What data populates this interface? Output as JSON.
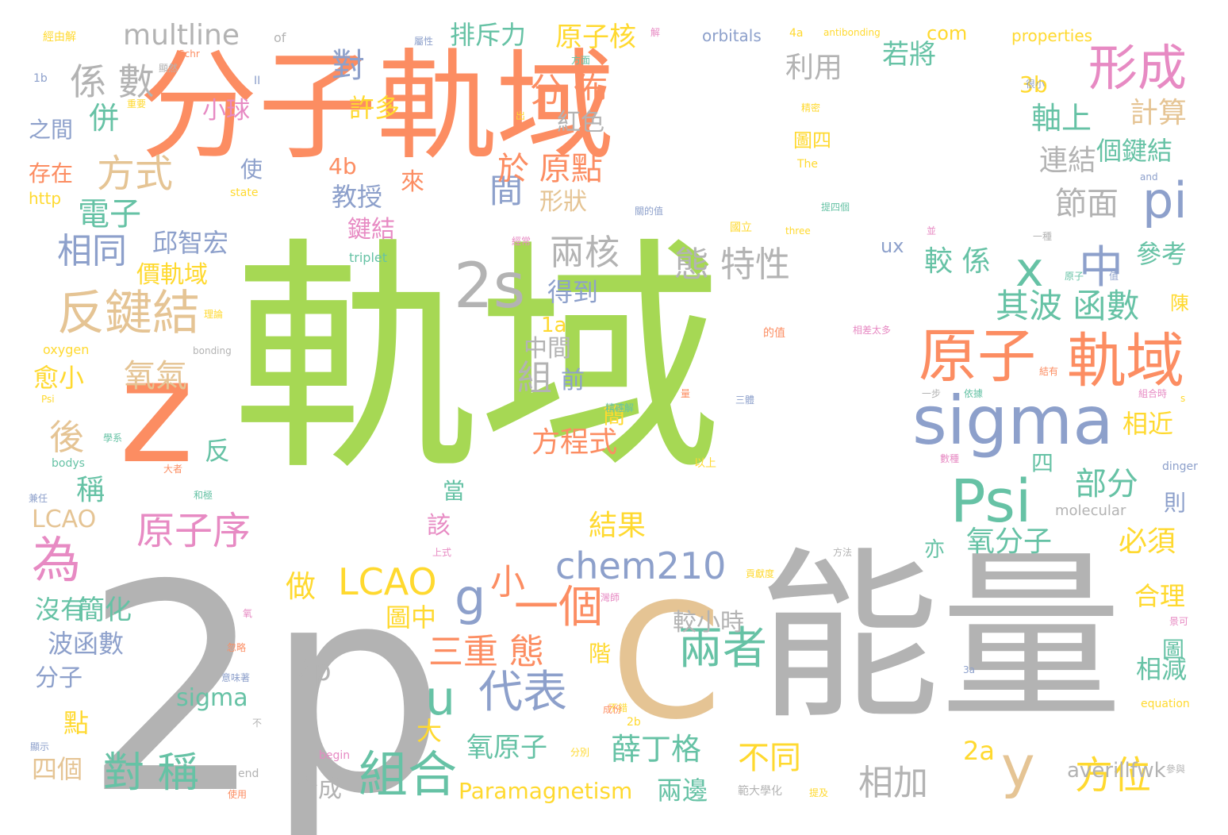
{
  "palette": {
    "green": "#a6d854",
    "orange": "#fc8d62",
    "gray": "#b3b3b3",
    "tan": "#e5c494",
    "blue": "#8da0cb",
    "teal": "#66c2a5",
    "pink": "#e78ac3",
    "yellow": "#ffd92f"
  },
  "words": [
    {
      "text": "軌域",
      "color": "green"
    },
    {
      "text": "分子軌域",
      "color": "orange"
    },
    {
      "text": "2p",
      "color": "gray"
    },
    {
      "text": "能量",
      "color": "gray"
    },
    {
      "text": "C",
      "color": "tan"
    },
    {
      "text": "z",
      "color": "orange"
    },
    {
      "text": "sigma",
      "color": "blue"
    },
    {
      "text": "原子",
      "color": "orange"
    },
    {
      "text": "軌域",
      "color": "orange"
    },
    {
      "text": "反鍵結",
      "color": "tan"
    },
    {
      "text": "2s",
      "color": "gray"
    },
    {
      "text": "Psi",
      "color": "teal"
    },
    {
      "text": "為",
      "color": "pink"
    },
    {
      "text": "形成",
      "color": "pink"
    },
    {
      "text": "兩者",
      "color": "teal"
    },
    {
      "text": "組合",
      "color": "teal"
    },
    {
      "text": "代表",
      "color": "blue"
    },
    {
      "text": "對 稱",
      "color": "teal"
    },
    {
      "text": "y",
      "color": "tan"
    },
    {
      "text": "方位",
      "color": "yellow"
    },
    {
      "text": "chem210",
      "color": "blue"
    },
    {
      "text": "一個",
      "color": "orange"
    },
    {
      "text": "u",
      "color": "teal"
    },
    {
      "text": "g",
      "color": "blue"
    },
    {
      "text": "x",
      "color": "teal"
    },
    {
      "text": "中",
      "color": "blue"
    },
    {
      "text": "pi",
      "color": "blue"
    },
    {
      "text": "係 數",
      "color": "gray"
    },
    {
      "text": "方式",
      "color": "tan"
    },
    {
      "text": "相同",
      "color": "blue"
    },
    {
      "text": "原子序",
      "color": "pink"
    },
    {
      "text": "三重 態",
      "color": "orange"
    },
    {
      "text": "LCAO",
      "color": "yellow"
    },
    {
      "text": "其波 函數",
      "color": "teal"
    },
    {
      "text": "部分",
      "color": "teal"
    },
    {
      "text": "相加",
      "color": "gray"
    },
    {
      "text": "不同",
      "color": "yellow"
    },
    {
      "text": "薛丁格",
      "color": "teal"
    },
    {
      "text": "氧原子",
      "color": "teal"
    },
    {
      "text": "multline",
      "color": "gray"
    },
    {
      "text": "兩核",
      "color": "gray"
    },
    {
      "text": "態 特性",
      "color": "gray"
    },
    {
      "text": "氧氣",
      "color": "tan"
    },
    {
      "text": "電子",
      "color": "teal"
    },
    {
      "text": "分 佈",
      "color": "orange"
    },
    {
      "text": "間",
      "color": "blue"
    },
    {
      "text": "於 原點",
      "color": "orange"
    },
    {
      "text": "對",
      "color": "blue"
    },
    {
      "text": "排斥力",
      "color": "teal"
    },
    {
      "text": "原子核",
      "color": "yellow"
    },
    {
      "text": "利用",
      "color": "gray"
    },
    {
      "text": "若將",
      "color": "teal"
    },
    {
      "text": "軸上",
      "color": "teal"
    },
    {
      "text": "計算",
      "color": "tan"
    },
    {
      "text": "連結",
      "color": "gray"
    },
    {
      "text": "節面",
      "color": "gray"
    },
    {
      "text": "個鍵結",
      "color": "teal"
    },
    {
      "text": "參考",
      "color": "teal"
    },
    {
      "text": "較 係",
      "color": "teal"
    },
    {
      "text": "氧分子",
      "color": "teal"
    },
    {
      "text": "必須",
      "color": "yellow"
    },
    {
      "text": "相近",
      "color": "yellow"
    },
    {
      "text": "合理",
      "color": "yellow"
    },
    {
      "text": "相減",
      "color": "teal"
    },
    {
      "text": "結果",
      "color": "yellow"
    },
    {
      "text": "方程式",
      "color": "orange"
    },
    {
      "text": "做",
      "color": "yellow"
    },
    {
      "text": "小",
      "color": "orange"
    },
    {
      "text": "較小時",
      "color": "gray"
    },
    {
      "text": "圖中",
      "color": "yellow"
    },
    {
      "text": "sigma",
      "color": "teal"
    },
    {
      "text": "2p",
      "color": "gray"
    },
    {
      "text": "大",
      "color": "yellow"
    },
    {
      "text": "2a",
      "color": "yellow"
    },
    {
      "text": "averillfwk",
      "color": "gray"
    },
    {
      "text": "兩邊",
      "color": "teal"
    },
    {
      "text": "合成",
      "color": "gray"
    },
    {
      "text": "Paramagnetism",
      "color": "yellow"
    },
    {
      "text": "四個",
      "color": "tan"
    },
    {
      "text": "點",
      "color": "yellow"
    },
    {
      "text": "分子",
      "color": "blue"
    },
    {
      "text": "波函數",
      "color": "blue"
    },
    {
      "text": "簡化",
      "color": "teal"
    },
    {
      "text": "沒有",
      "color": "teal"
    },
    {
      "text": "愈小",
      "color": "yellow"
    },
    {
      "text": "後",
      "color": "tan"
    },
    {
      "text": "稱",
      "color": "teal"
    },
    {
      "text": "反",
      "color": "teal"
    },
    {
      "text": "LCAO",
      "color": "tan"
    },
    {
      "text": "價軌域",
      "color": "yellow"
    },
    {
      "text": "邱智宏",
      "color": "blue"
    },
    {
      "text": "教授",
      "color": "blue"
    },
    {
      "text": "鍵結",
      "color": "pink"
    },
    {
      "text": "來",
      "color": "orange"
    },
    {
      "text": "4b",
      "color": "orange"
    },
    {
      "text": "許多",
      "color": "yellow"
    },
    {
      "text": "紅色",
      "color": "gray"
    },
    {
      "text": "形狀",
      "color": "tan"
    },
    {
      "text": "得到",
      "color": "blue"
    },
    {
      "text": "中間",
      "color": "gray"
    },
    {
      "text": "組",
      "color": "gray"
    },
    {
      "text": "前",
      "color": "blue"
    },
    {
      "text": "簡",
      "color": "yellow"
    },
    {
      "text": "1a",
      "color": "yellow"
    },
    {
      "text": "該",
      "color": "pink"
    },
    {
      "text": "當",
      "color": "teal"
    },
    {
      "text": "階",
      "color": "yellow"
    },
    {
      "text": "亦",
      "color": "teal"
    },
    {
      "text": "四",
      "color": "teal"
    },
    {
      "text": "則",
      "color": "blue"
    },
    {
      "text": "3b",
      "color": "yellow"
    },
    {
      "text": "com",
      "color": "yellow"
    },
    {
      "text": "ux",
      "color": "blue"
    },
    {
      "text": "圖四",
      "color": "yellow"
    },
    {
      "text": "使",
      "color": "blue"
    },
    {
      "text": "併",
      "color": "teal"
    },
    {
      "text": "小球",
      "color": "pink"
    },
    {
      "text": "之間",
      "color": "blue"
    },
    {
      "text": "存在",
      "color": "orange"
    },
    {
      "text": "http",
      "color": "yellow"
    },
    {
      "text": "orbitals",
      "color": "blue"
    },
    {
      "text": "properties",
      "color": "yellow"
    },
    {
      "text": "triplet",
      "color": "teal"
    },
    {
      "text": "oxygen",
      "color": "yellow"
    },
    {
      "text": "molecular",
      "color": "gray"
    },
    {
      "text": "陳",
      "color": "yellow"
    },
    {
      "text": "圖",
      "color": "teal"
    },
    {
      "text": "經由解",
      "color": "yellow"
    },
    {
      "text": "of",
      "color": "gray"
    },
    {
      "text": "屬性",
      "color": "blue"
    },
    {
      "text": "解",
      "color": "pink"
    },
    {
      "text": "4a",
      "color": "yellow"
    },
    {
      "text": "antibonding",
      "color": "yellow"
    },
    {
      "text": "Schr",
      "color": "orange"
    },
    {
      "text": "顯然",
      "color": "gray"
    },
    {
      "text": "1b",
      "color": "blue"
    },
    {
      "text": "方面",
      "color": "teal"
    },
    {
      "text": "很小",
      "color": "blue"
    },
    {
      "text": "II",
      "color": "blue"
    },
    {
      "text": "重要",
      "color": "yellow"
    },
    {
      "text": "精密",
      "color": "yellow"
    },
    {
      "text": "出",
      "color": "yellow"
    },
    {
      "text": "The",
      "color": "yellow"
    },
    {
      "text": "and",
      "color": "blue"
    },
    {
      "text": "state",
      "color": "yellow"
    },
    {
      "text": "提四個",
      "color": "teal"
    },
    {
      "text": "關的值",
      "color": "blue"
    },
    {
      "text": "國立",
      "color": "yellow"
    },
    {
      "text": "three",
      "color": "yellow"
    },
    {
      "text": "並",
      "color": "pink"
    },
    {
      "text": "經常",
      "color": "pink"
    },
    {
      "text": "一種",
      "color": "gray"
    },
    {
      "text": "原子",
      "color": "teal"
    },
    {
      "text": "值",
      "color": "blue"
    },
    {
      "text": "理論",
      "color": "yellow"
    },
    {
      "text": "bonding",
      "color": "gray"
    },
    {
      "text": "相差太多",
      "color": "pink"
    },
    {
      "text": "的值",
      "color": "orange"
    },
    {
      "text": "Psi",
      "color": "yellow"
    },
    {
      "text": "三體",
      "color": "blue"
    },
    {
      "text": "量",
      "color": "orange"
    },
    {
      "text": "結有",
      "color": "orange"
    },
    {
      "text": "一步",
      "color": "gray"
    },
    {
      "text": "依據",
      "color": "teal"
    },
    {
      "text": "組合時",
      "color": "pink"
    },
    {
      "text": "s",
      "color": "yellow"
    },
    {
      "text": "精確解",
      "color": "teal"
    },
    {
      "text": "學系",
      "color": "teal"
    },
    {
      "text": "bodys",
      "color": "teal"
    },
    {
      "text": "大者",
      "color": "orange"
    },
    {
      "text": "以上",
      "color": "yellow"
    },
    {
      "text": "數種",
      "color": "pink"
    },
    {
      "text": "dinger",
      "color": "blue"
    },
    {
      "text": "兼任",
      "color": "blue"
    },
    {
      "text": "和極",
      "color": "teal"
    },
    {
      "text": "上式",
      "color": "pink"
    },
    {
      "text": "方法",
      "color": "gray"
    },
    {
      "text": "貢獻度",
      "color": "yellow"
    },
    {
      "text": "灣師",
      "color": "pink"
    },
    {
      "text": "氧",
      "color": "pink"
    },
    {
      "text": "忽略",
      "color": "orange"
    },
    {
      "text": "景可",
      "color": "pink"
    },
    {
      "text": "意味著",
      "color": "blue"
    },
    {
      "text": "3a",
      "color": "blue"
    },
    {
      "text": "不錯",
      "color": "yellow"
    },
    {
      "text": "equation",
      "color": "yellow"
    },
    {
      "text": "不",
      "color": "gray"
    },
    {
      "text": "成份",
      "color": "orange"
    },
    {
      "text": "2b",
      "color": "yellow"
    },
    {
      "text": "顯示",
      "color": "blue"
    },
    {
      "text": "begin",
      "color": "pink"
    },
    {
      "text": "分別",
      "color": "yellow"
    },
    {
      "text": "end",
      "color": "gray"
    },
    {
      "text": "參與",
      "color": "gray"
    },
    {
      "text": "使用",
      "color": "orange"
    },
    {
      "text": "範大學化",
      "color": "gray"
    },
    {
      "text": "提及",
      "color": "yellow"
    }
  ]
}
